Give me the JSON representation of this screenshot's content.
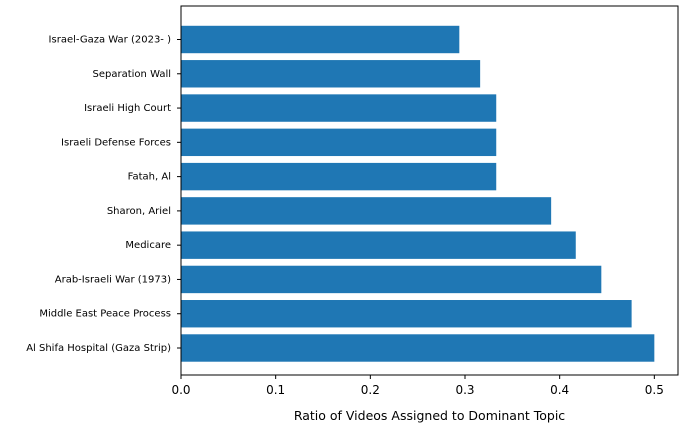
{
  "chart_data": {
    "type": "bar",
    "orientation": "horizontal",
    "title": "",
    "xlabel": "Ratio of Videos Assigned to Dominant Topic",
    "ylabel": "",
    "categories": [
      "Al Shifa Hospital (Gaza Strip)",
      "Middle East Peace Process",
      "Arab-Israeli War (1973)",
      "Medicare",
      "Sharon, Ariel",
      "Fatah, Al",
      "Israeli Defense Forces",
      "Israeli High Court",
      "Separation Wall",
      "Israel-Gaza War (2023- )"
    ],
    "values": [
      0.5,
      0.476,
      0.444,
      0.417,
      0.391,
      0.333,
      0.333,
      0.333,
      0.316,
      0.294
    ],
    "xlim": [
      0,
      0.525
    ],
    "xticks": [
      0.0,
      0.1,
      0.2,
      0.3,
      0.4,
      0.5
    ],
    "xtick_labels": [
      "0.0",
      "0.1",
      "0.2",
      "0.3",
      "0.4",
      "0.5"
    ],
    "bar_color": "#1f77b4",
    "grid": false,
    "legend": "none"
  }
}
